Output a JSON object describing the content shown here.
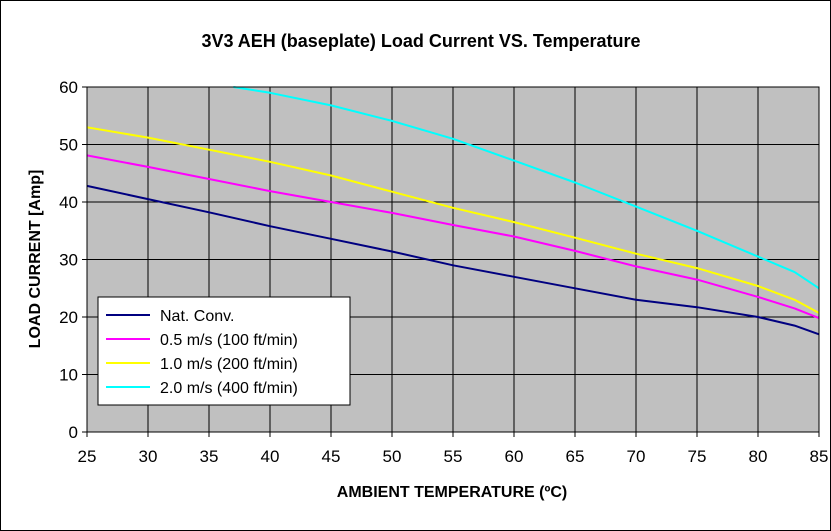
{
  "chart_data": {
    "type": "line",
    "title": "3V3 AEH (baseplate) Load Current VS. Temperature",
    "xlabel": "AMBIENT TEMPERATURE (ºC)",
    "ylabel": "LOAD CURRENT [Amp]",
    "xlim": [
      25,
      85
    ],
    "ylim": [
      0,
      60
    ],
    "xticks": [
      25,
      30,
      35,
      40,
      45,
      50,
      55,
      60,
      65,
      70,
      75,
      80,
      85
    ],
    "yticks": [
      0,
      10,
      20,
      30,
      40,
      50,
      60
    ],
    "grid": true,
    "plot_background": "#c0c0c0",
    "legend_position": "bottom-left",
    "series": [
      {
        "name": "Nat. Conv.",
        "color": "#000080",
        "x": [
          25,
          30,
          35,
          40,
          45,
          50,
          55,
          60,
          65,
          70,
          75,
          80,
          83,
          85
        ],
        "y": [
          42.8,
          40.5,
          38.2,
          35.8,
          33.6,
          31.4,
          29.0,
          27.0,
          25.0,
          23.0,
          21.7,
          20.0,
          18.5,
          17.0
        ]
      },
      {
        "name": "0.5 m/s (100 ft/min)",
        "color": "#ff00ff",
        "x": [
          25,
          30,
          35,
          40,
          45,
          50,
          55,
          60,
          65,
          70,
          75,
          80,
          83,
          85
        ],
        "y": [
          48.1,
          46.1,
          44.0,
          41.9,
          40.0,
          38.1,
          36.0,
          34.0,
          31.5,
          28.8,
          26.5,
          23.5,
          21.5,
          19.8
        ]
      },
      {
        "name": "1.0 m/s (200 ft/min)",
        "color": "#ffff00",
        "x": [
          25,
          30,
          35,
          40,
          45,
          50,
          55,
          60,
          65,
          70,
          75,
          80,
          83,
          85
        ],
        "y": [
          53.0,
          51.2,
          49.1,
          47.0,
          44.6,
          41.8,
          39.0,
          36.5,
          33.8,
          31.0,
          28.5,
          25.4,
          23.0,
          20.7
        ]
      },
      {
        "name": "2.0 m/s (400 ft/min)",
        "color": "#00ffff",
        "x": [
          37,
          40,
          45,
          50,
          55,
          60,
          65,
          70,
          75,
          80,
          83,
          85
        ],
        "y": [
          60.0,
          59.0,
          56.8,
          54.1,
          51.0,
          47.2,
          43.4,
          39.2,
          35.0,
          30.5,
          27.8,
          25.0
        ]
      }
    ]
  }
}
